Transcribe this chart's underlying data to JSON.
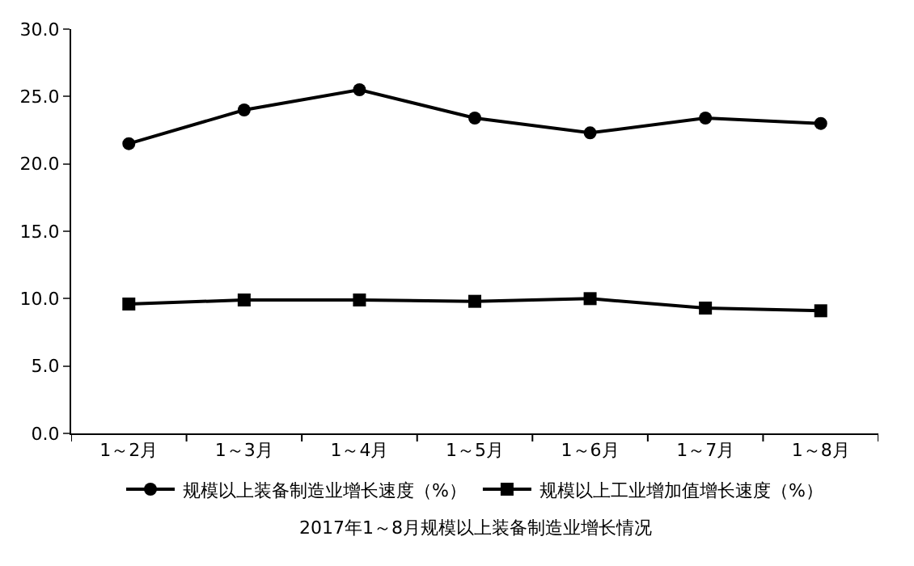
{
  "chart_data": {
    "type": "line",
    "title": "2017年1～8月规模以上装备制造业增长情况",
    "categories": [
      "1～2月",
      "1～3月",
      "1～4月",
      "1～5月",
      "1～6月",
      "1～7月",
      "1～8月"
    ],
    "series": [
      {
        "name": "规模以上装备制造业增长速度（%）",
        "color": "#000000",
        "marker": "circle",
        "values": [
          21.5,
          24.0,
          25.5,
          23.4,
          22.3,
          23.4,
          23.0
        ]
      },
      {
        "name": "规模以上工业增加值增长速度（%）",
        "color": "#000000",
        "marker": "square",
        "values": [
          9.6,
          9.9,
          9.9,
          9.8,
          10.0,
          9.3,
          9.1
        ]
      }
    ],
    "ylim": [
      0,
      30
    ],
    "yticks": [
      {
        "value": 0,
        "label": "0.0"
      },
      {
        "value": 5,
        "label": "5.0"
      },
      {
        "value": 10,
        "label": "10.0"
      },
      {
        "value": 15,
        "label": "15.0"
      },
      {
        "value": 20,
        "label": "20.0"
      },
      {
        "value": 25,
        "label": "25.0"
      },
      {
        "value": 30,
        "label": "30.0"
      }
    ],
    "legend": "bottom",
    "line_style": "solid"
  }
}
